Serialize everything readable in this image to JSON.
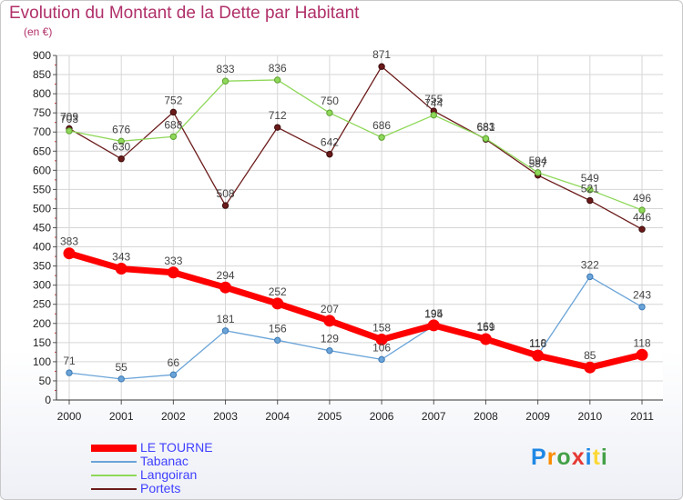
{
  "chart_data": {
    "type": "line",
    "title": "Evolution du Montant de la Dette par Habitant",
    "subtitle": "(en €)",
    "x": [
      "2000",
      "2001",
      "2002",
      "2003",
      "2004",
      "2005",
      "2006",
      "2007",
      "2008",
      "2009",
      "2010",
      "2011"
    ],
    "ylim": [
      0,
      900
    ],
    "yticks": [
      0,
      50,
      100,
      150,
      200,
      250,
      300,
      350,
      400,
      450,
      500,
      550,
      600,
      650,
      700,
      750,
      800,
      850,
      900
    ],
    "grid": true,
    "legend_position": "bottom-left",
    "series": [
      {
        "name": "LE TOURNE",
        "color": "#ff0000",
        "values": [
          383,
          343,
          333,
          294,
          252,
          207,
          158,
          195,
          159,
          116,
          85,
          118
        ]
      },
      {
        "name": "Tabanac",
        "color": "#6aa4d8",
        "values": [
          71,
          55,
          66,
          181,
          156,
          129,
          106,
          194,
          161,
          118,
          322,
          243
        ]
      },
      {
        "name": "Langoiran",
        "color": "#8fd85a",
        "values": [
          703,
          676,
          688,
          833,
          836,
          750,
          686,
          744,
          683,
          594,
          549,
          496
        ]
      },
      {
        "name": "Portets",
        "color": "#6b1a1a",
        "values": [
          709,
          630,
          752,
          508,
          712,
          642,
          871,
          755,
          681,
          587,
          521,
          446
        ]
      }
    ]
  },
  "logo": {
    "letters": [
      "P",
      "r",
      "o",
      "x",
      "i",
      "t",
      "i"
    ],
    "colors": [
      "#1e88e5",
      "#fb8c00",
      "#43a047",
      "#e53935",
      "#1e88e5",
      "#fdd835",
      "#43a047"
    ]
  }
}
